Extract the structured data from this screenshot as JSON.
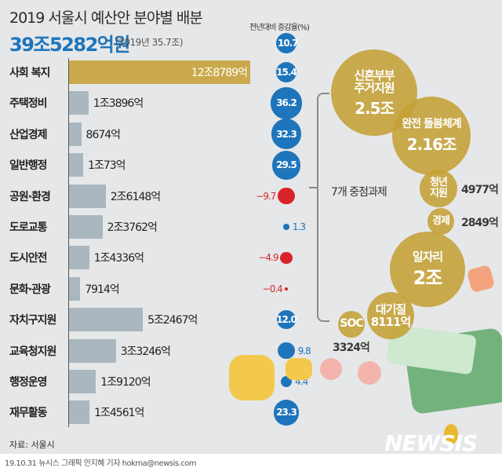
{
  "header": {
    "title": "2019 서울시 예산안 분야별 배분",
    "total": "39조5282억원",
    "previous": "(2019년 35.7조)",
    "pct_label": "전년대비 증감율(%)",
    "total_change": 10.7
  },
  "colors": {
    "highlight": "#c9a94b",
    "bar": "#aab7bf",
    "positive": "#1e75bb",
    "negative": "#d9232a",
    "bubble": "#c4a034"
  },
  "chart_data": {
    "type": "bar",
    "orientation": "horizontal",
    "unit": "억원",
    "categories": [
      "사회 복지",
      "주택정비",
      "산업경제",
      "일반행정",
      "공원·환경",
      "도로교통",
      "도시안전",
      "문화·관광",
      "자치구지원",
      "교육청지원",
      "행정운영",
      "재무활동"
    ],
    "values": [
      128789,
      13896,
      8674,
      10073,
      26148,
      23762,
      14336,
      7914,
      52467,
      33246,
      19120,
      14561
    ],
    "value_labels": [
      "12조8789억",
      "1조3896억",
      "8674억",
      "1조73억",
      "2조6148억",
      "2조3762억",
      "1조4336억",
      "7914억",
      "5조2467억",
      "3조3246억",
      "1조9120억",
      "1조4561억"
    ],
    "change_pct": [
      15.4,
      36.2,
      32.3,
      29.5,
      -9.7,
      1.3,
      -4.9,
      -0.4,
      12.0,
      9.8,
      4.4,
      23.3
    ],
    "change_labels": [
      "15.4",
      "36.2",
      "32.3",
      "29.5",
      "−9.7",
      "1.3",
      "−4.9",
      "−0.4",
      "12.0",
      "9.8",
      "4.4",
      "23.3"
    ]
  },
  "focus": {
    "label": "7개 중점과제",
    "items": [
      {
        "name": "신혼부부\n주거지원",
        "amount": "2.5조"
      },
      {
        "name": "완전 돌봄체계",
        "amount": "2.16조"
      },
      {
        "name": "청년\n지원",
        "amount": "4977억"
      },
      {
        "name": "경제",
        "amount": "2849억"
      },
      {
        "name": "일자리",
        "amount": "2조"
      },
      {
        "name": "대기질",
        "amount": "8111억"
      },
      {
        "name": "SOC",
        "amount": "3324억"
      }
    ]
  },
  "footer": {
    "source": "자료: 서울시",
    "credit": "19.10.31 뉴시스 그래픽 안지혜 기자 hokma@newsis.com",
    "logo": "NEWSIS"
  }
}
